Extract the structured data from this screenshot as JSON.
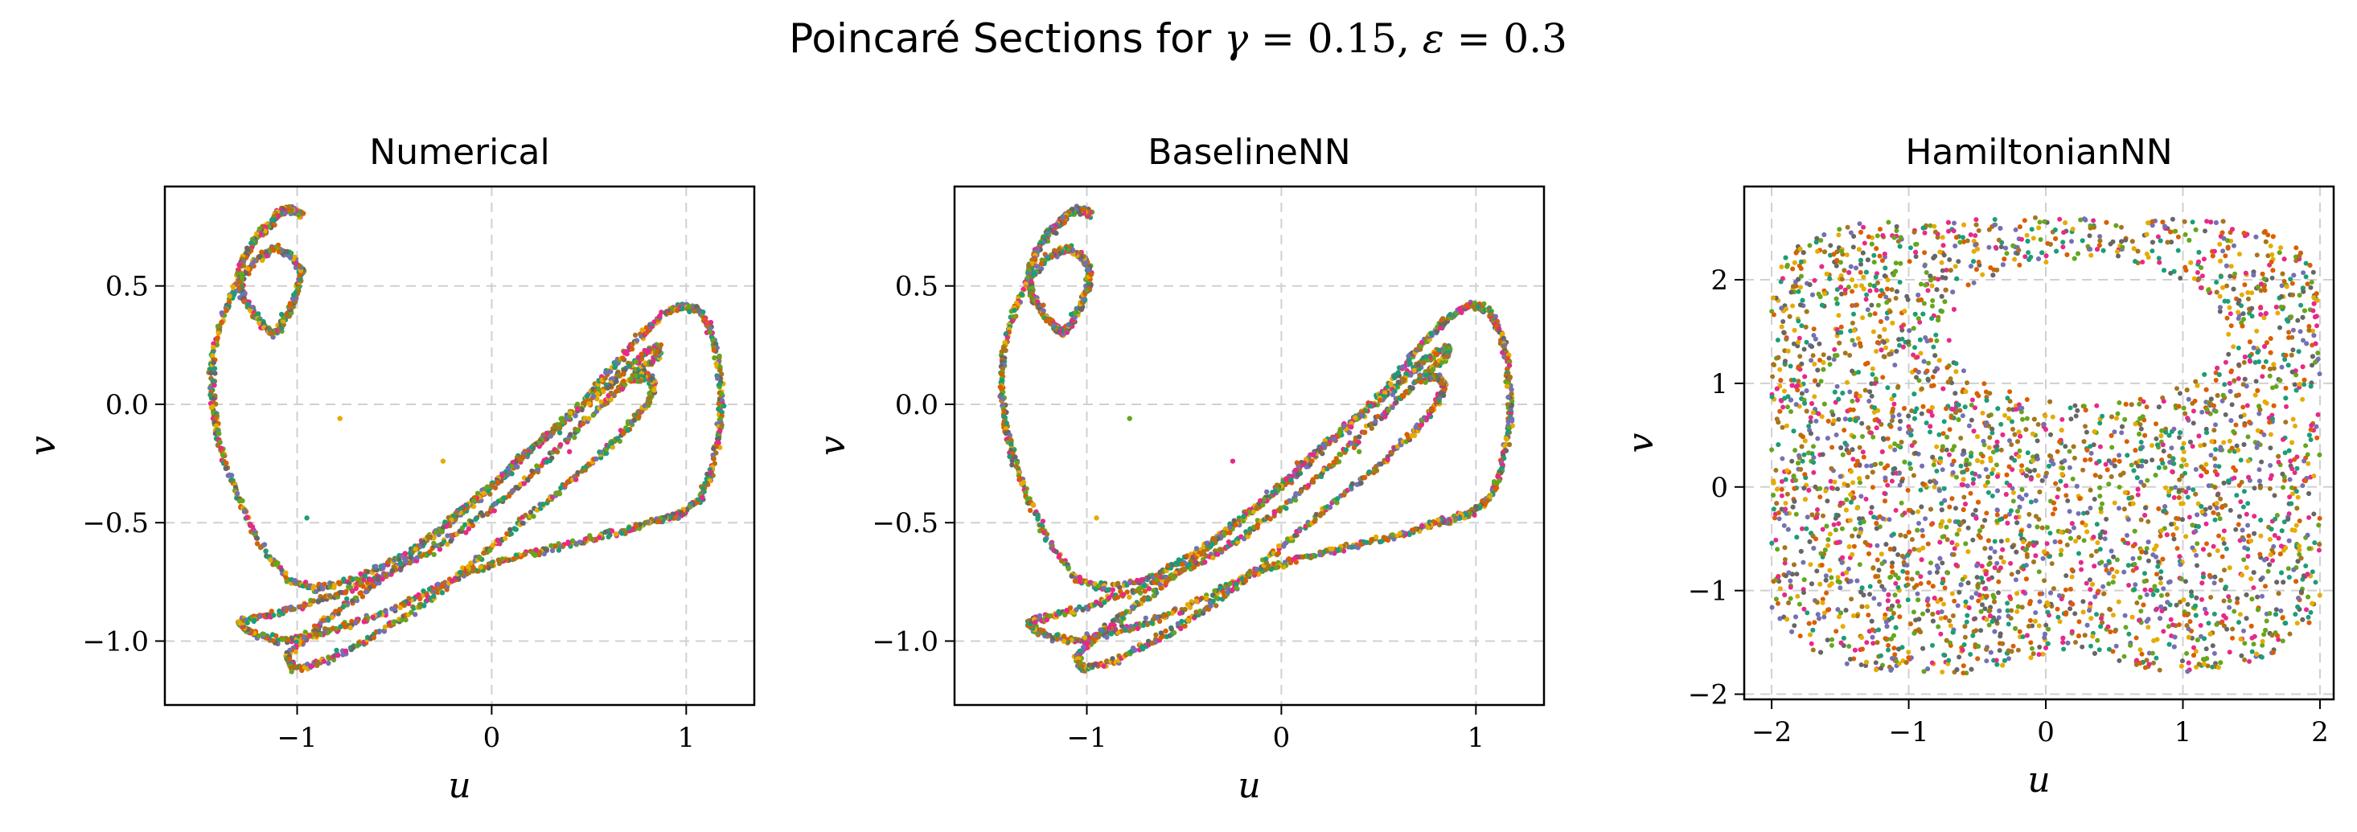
{
  "figure": {
    "title_text": "Poincaré Sections for ",
    "title_gamma_symbol": "γ",
    "title_gamma_value": " = 0.15, ",
    "title_eps_symbol": "ε",
    "title_eps_value": " = 0.3"
  },
  "point_colors": [
    "#1b9e77",
    "#d95f02",
    "#7570b3",
    "#e7298a",
    "#66a61e",
    "#e6ab02",
    "#a6761d",
    "#666666"
  ],
  "chart_data": [
    {
      "type": "scatter",
      "title": "Numerical",
      "xlabel": "u",
      "ylabel": "v",
      "xlim": [
        -1.68,
        1.35
      ],
      "ylim": [
        -1.27,
        0.92
      ],
      "xticks": [
        -1,
        0,
        1
      ],
      "xtick_labels": [
        "−1",
        "0",
        "1"
      ],
      "yticks": [
        -1.0,
        -0.5,
        0.0,
        0.5
      ],
      "ytick_labels": [
        "−1.0",
        "−0.5",
        "0.0",
        "0.5"
      ],
      "grid": true,
      "series": [
        {
          "values_description": "approximate centerline path of the strange-attractor filament",
          "x": [
            -0.98,
            -1.02,
            -1.06,
            -1.1,
            -1.14,
            -1.2,
            -1.26,
            -1.3,
            -1.28,
            -1.22,
            -1.16,
            -1.12,
            -1.08,
            -1.04,
            -1.0,
            -0.98,
            -1.02,
            -1.1,
            -1.2,
            -1.3,
            -1.38,
            -1.43,
            -1.44,
            -1.42,
            -1.38,
            -1.3,
            -1.2,
            -1.05,
            -0.9,
            -0.7,
            -0.5,
            -0.3,
            -0.1,
            0.1,
            0.3,
            0.5,
            0.65,
            0.78,
            0.88,
            0.98,
            1.06,
            1.12,
            1.16,
            1.18,
            1.17,
            1.13,
            1.07,
            0.98,
            0.9,
            0.8,
            0.65,
            0.45,
            0.25,
            0.05,
            -0.15,
            -0.35,
            -0.55,
            -0.75,
            -0.95,
            -1.1,
            -1.25,
            -1.3,
            -1.2,
            -1.0,
            -0.8,
            -0.6,
            -0.4,
            -0.2,
            0.0,
            0.2,
            0.4,
            0.6,
            0.75,
            0.85,
            0.86,
            0.8,
            0.7,
            0.6,
            0.45,
            0.3,
            0.15,
            0.0,
            -0.2,
            -0.4,
            -0.6,
            -0.8,
            -0.95,
            -1.05,
            -1.02,
            -0.85,
            -0.65,
            -0.45,
            -0.25,
            -0.05,
            0.15,
            0.35,
            0.55,
            0.7,
            0.8,
            0.84,
            0.8,
            0.72
          ],
          "y": [
            0.8,
            0.82,
            0.82,
            0.8,
            0.76,
            0.72,
            0.64,
            0.55,
            0.46,
            0.38,
            0.32,
            0.3,
            0.34,
            0.4,
            0.48,
            0.56,
            0.62,
            0.66,
            0.62,
            0.52,
            0.38,
            0.22,
            0.06,
            -0.08,
            -0.22,
            -0.4,
            -0.58,
            -0.74,
            -0.78,
            -0.74,
            -0.66,
            -0.55,
            -0.42,
            -0.28,
            -0.12,
            0.04,
            0.18,
            0.3,
            0.38,
            0.42,
            0.4,
            0.32,
            0.2,
            0.04,
            -0.12,
            -0.28,
            -0.4,
            -0.46,
            -0.48,
            -0.5,
            -0.54,
            -0.58,
            -0.62,
            -0.66,
            -0.72,
            -0.8,
            -0.88,
            -0.94,
            -0.98,
            -1.0,
            -0.96,
            -0.92,
            -0.9,
            -0.86,
            -0.8,
            -0.74,
            -0.66,
            -0.56,
            -0.44,
            -0.3,
            -0.14,
            0.02,
            0.14,
            0.2,
            0.24,
            0.22,
            0.16,
            0.08,
            -0.02,
            -0.12,
            -0.22,
            -0.34,
            -0.48,
            -0.62,
            -0.76,
            -0.88,
            -0.98,
            -1.06,
            -1.12,
            -1.08,
            -1.0,
            -0.9,
            -0.78,
            -0.64,
            -0.5,
            -0.36,
            -0.22,
            -0.1,
            0.0,
            0.08,
            0.12,
            0.1
          ]
        }
      ]
    },
    {
      "type": "scatter",
      "title": "BaselineNN",
      "xlabel": "u",
      "ylabel": "v",
      "xlim": [
        -1.68,
        1.35
      ],
      "ylim": [
        -1.27,
        0.92
      ],
      "xticks": [
        -1,
        0,
        1
      ],
      "xtick_labels": [
        "−1",
        "0",
        "1"
      ],
      "yticks": [
        -1.0,
        -0.5,
        0.0,
        0.5
      ],
      "ytick_labels": [
        "−1.0",
        "−0.5",
        "0.0",
        "0.5"
      ],
      "grid": true,
      "series": [
        {
          "values_description": "approximate centerline path of the strange-attractor filament",
          "x": [
            -0.98,
            -1.02,
            -1.06,
            -1.1,
            -1.14,
            -1.2,
            -1.26,
            -1.3,
            -1.28,
            -1.22,
            -1.16,
            -1.12,
            -1.08,
            -1.04,
            -1.0,
            -0.98,
            -1.02,
            -1.1,
            -1.2,
            -1.3,
            -1.38,
            -1.43,
            -1.44,
            -1.42,
            -1.38,
            -1.3,
            -1.2,
            -1.05,
            -0.9,
            -0.7,
            -0.5,
            -0.3,
            -0.1,
            0.1,
            0.3,
            0.5,
            0.65,
            0.78,
            0.88,
            0.98,
            1.06,
            1.12,
            1.16,
            1.18,
            1.17,
            1.13,
            1.07,
            0.98,
            0.9,
            0.8,
            0.65,
            0.45,
            0.25,
            0.05,
            -0.15,
            -0.35,
            -0.55,
            -0.75,
            -0.95,
            -1.1,
            -1.25,
            -1.3,
            -1.2,
            -1.0,
            -0.8,
            -0.6,
            -0.4,
            -0.2,
            0.0,
            0.2,
            0.4,
            0.6,
            0.75,
            0.85,
            0.86,
            0.8,
            0.7,
            0.6,
            0.45,
            0.3,
            0.15,
            0.0,
            -0.2,
            -0.4,
            -0.6,
            -0.8,
            -0.95,
            -1.05,
            -1.02,
            -0.85,
            -0.65,
            -0.45,
            -0.25,
            -0.05,
            0.15,
            0.35,
            0.55,
            0.7,
            0.8,
            0.84,
            0.8,
            0.72
          ],
          "y": [
            0.8,
            0.82,
            0.82,
            0.8,
            0.76,
            0.72,
            0.64,
            0.55,
            0.46,
            0.38,
            0.32,
            0.3,
            0.34,
            0.4,
            0.48,
            0.56,
            0.62,
            0.66,
            0.62,
            0.52,
            0.38,
            0.22,
            0.06,
            -0.08,
            -0.22,
            -0.4,
            -0.58,
            -0.74,
            -0.78,
            -0.74,
            -0.66,
            -0.55,
            -0.42,
            -0.28,
            -0.12,
            0.04,
            0.18,
            0.3,
            0.38,
            0.42,
            0.4,
            0.32,
            0.2,
            0.04,
            -0.12,
            -0.28,
            -0.4,
            -0.46,
            -0.48,
            -0.5,
            -0.54,
            -0.58,
            -0.62,
            -0.66,
            -0.72,
            -0.8,
            -0.88,
            -0.94,
            -0.98,
            -1.0,
            -0.96,
            -0.92,
            -0.9,
            -0.86,
            -0.8,
            -0.74,
            -0.66,
            -0.56,
            -0.44,
            -0.3,
            -0.14,
            0.02,
            0.14,
            0.2,
            0.24,
            0.22,
            0.16,
            0.08,
            -0.02,
            -0.12,
            -0.22,
            -0.34,
            -0.48,
            -0.62,
            -0.76,
            -0.88,
            -0.98,
            -1.06,
            -1.12,
            -1.08,
            -1.0,
            -0.9,
            -0.78,
            -0.64,
            -0.5,
            -0.36,
            -0.22,
            -0.1,
            0.0,
            0.08,
            0.12,
            0.1
          ]
        }
      ]
    },
    {
      "type": "scatter",
      "title": "HamiltonianNN",
      "xlabel": "u",
      "ylabel": "v",
      "xlim": [
        -2.2,
        2.1
      ],
      "ylim": [
        -2.05,
        2.9
      ],
      "xticks": [
        -2,
        -1,
        0,
        1,
        2
      ],
      "xtick_labels": [
        "−2",
        "−1",
        "0",
        "1",
        "2"
      ],
      "yticks": [
        -2,
        -1,
        0,
        1,
        2
      ],
      "ytick_labels": [
        "−2",
        "−1",
        "0",
        "1",
        "2"
      ],
      "grid": true,
      "series": [
        {
          "values_description": "filled region bounded by |u| < 2, v from about -1.8 to 2.6, with an empty hole centered near (0.3, 1.5)",
          "region": {
            "u_range": [
              -2.0,
              2.0
            ],
            "v_range": [
              -1.8,
              2.6
            ],
            "hole_center": [
              0.3,
              1.5
            ],
            "hole_radii": [
              1.0,
              0.7
            ]
          }
        }
      ]
    }
  ]
}
